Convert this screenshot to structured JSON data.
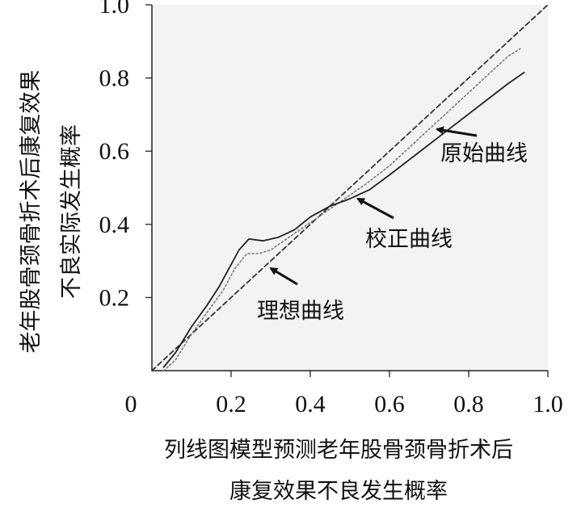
{
  "chart_data": {
    "type": "line",
    "title": "",
    "xlabel": "列线图模型预测老年股骨颈骨折术后\n康复效果不良发生概率",
    "ylabel": "老年股骨颈骨折术后康复效果\n不良实际发生概率",
    "xlim": [
      0,
      1.0
    ],
    "ylim": [
      0,
      1.0
    ],
    "x_ticks": [
      "0",
      "0.2",
      "0.4",
      "0.6",
      "0.8",
      "1.0"
    ],
    "y_ticks": [
      "0.2",
      "0.4",
      "0.6",
      "0.8",
      "1.0"
    ],
    "grid": false,
    "series": [
      {
        "name": "理想曲线",
        "style": "dashed",
        "color": "#333333",
        "x": [
          0.0,
          1.0
        ],
        "y": [
          0.0,
          1.0
        ]
      },
      {
        "name": "校正曲线",
        "style": "dotted",
        "color": "#777777",
        "x": [
          0.03,
          0.06,
          0.1,
          0.14,
          0.18,
          0.21,
          0.24,
          0.27,
          0.3,
          0.34,
          0.38,
          0.42,
          0.46,
          0.5,
          0.54,
          0.6,
          0.66,
          0.72,
          0.78,
          0.84,
          0.9,
          0.93
        ],
        "y": [
          0.0,
          0.03,
          0.1,
          0.16,
          0.22,
          0.28,
          0.32,
          0.32,
          0.33,
          0.36,
          0.39,
          0.42,
          0.45,
          0.48,
          0.51,
          0.56,
          0.62,
          0.68,
          0.74,
          0.8,
          0.86,
          0.88
        ]
      },
      {
        "name": "原始曲线",
        "style": "solid",
        "color": "#222222",
        "x": [
          0.03,
          0.06,
          0.1,
          0.14,
          0.17,
          0.2,
          0.22,
          0.245,
          0.28,
          0.32,
          0.36,
          0.4,
          0.45,
          0.5,
          0.55,
          0.6,
          0.66,
          0.72,
          0.78,
          0.84,
          0.9,
          0.94
        ],
        "y": [
          0.01,
          0.05,
          0.12,
          0.18,
          0.23,
          0.29,
          0.33,
          0.36,
          0.355,
          0.365,
          0.385,
          0.42,
          0.45,
          0.47,
          0.495,
          0.535,
          0.585,
          0.635,
          0.685,
          0.735,
          0.785,
          0.815
        ]
      }
    ],
    "annotations": [
      {
        "text": "原始曲线",
        "series": "原始曲线",
        "point": [
          0.72,
          0.66
        ]
      },
      {
        "text": "校正曲线",
        "series": "校正曲线",
        "point": [
          0.52,
          0.47
        ]
      },
      {
        "text": "理想曲线",
        "series": "理想曲线",
        "point": [
          0.3,
          0.28
        ]
      }
    ]
  }
}
